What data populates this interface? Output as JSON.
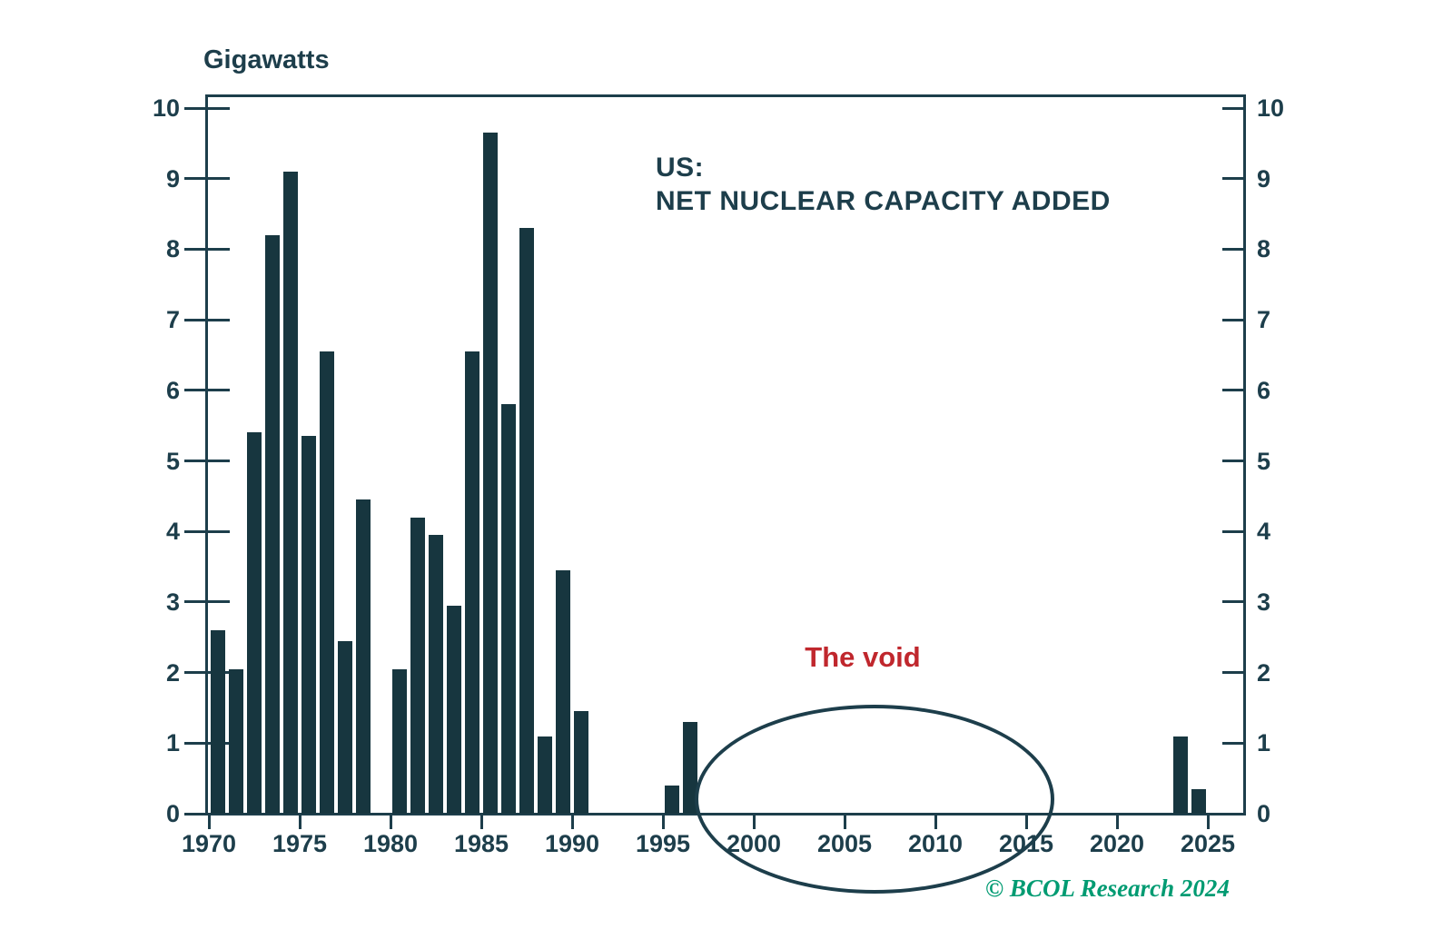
{
  "chart": {
    "y_axis_title": "Gigawatts",
    "series_label_line1": "US:",
    "series_label_line2": "NET NUCLEAR CAPACITY ADDED",
    "annotation": "The void",
    "watermark": "© BCOL Research 2024",
    "colors": {
      "teal": "#1d3e4b",
      "bar": "#17363f",
      "annotation_red": "#c0272d",
      "watermark_green": "#009b72",
      "background": "#ffffff"
    }
  },
  "chart_data": {
    "type": "bar",
    "title": "US: NET NUCLEAR CAPACITY ADDED",
    "xlabel": "",
    "ylabel": "Gigawatts",
    "ylim": [
      0,
      10
    ],
    "y_ticks": [
      0,
      1,
      2,
      3,
      4,
      5,
      6,
      7,
      8,
      9,
      10
    ],
    "x_tick_years": [
      1970,
      1975,
      1980,
      1985,
      1990,
      1995,
      2000,
      2005,
      2010,
      2015,
      2020,
      2025
    ],
    "grid": false,
    "legend": "none",
    "dual_y_axis": true,
    "x": [
      1970,
      1971,
      1972,
      1973,
      1974,
      1975,
      1976,
      1977,
      1978,
      1979,
      1980,
      1981,
      1982,
      1983,
      1984,
      1985,
      1986,
      1987,
      1988,
      1989,
      1990,
      1991,
      1992,
      1993,
      1994,
      1995,
      1996,
      1997,
      1998,
      1999,
      2000,
      2001,
      2002,
      2003,
      2004,
      2005,
      2006,
      2007,
      2008,
      2009,
      2010,
      2011,
      2012,
      2013,
      2014,
      2015,
      2016,
      2017,
      2018,
      2019,
      2020,
      2021,
      2022,
      2023,
      2024,
      2025
    ],
    "values": [
      2.6,
      2.05,
      5.4,
      8.2,
      9.1,
      5.35,
      6.55,
      2.45,
      4.45,
      0,
      2.05,
      4.2,
      3.95,
      2.95,
      6.55,
      9.65,
      5.8,
      8.3,
      1.1,
      3.45,
      1.45,
      0,
      0,
      0,
      0,
      0.4,
      1.3,
      0,
      0,
      0,
      0,
      0,
      0,
      0,
      0,
      0,
      0,
      0,
      0,
      0,
      0,
      0,
      0,
      0,
      0,
      0,
      0,
      0,
      0,
      0,
      0,
      0,
      0,
      1.1,
      0.35,
      0
    ],
    "annotations": [
      {
        "text": "The void",
        "color": "#c0272d",
        "shape": "ellipse",
        "x_range": [
          1997,
          2017
        ]
      }
    ]
  }
}
